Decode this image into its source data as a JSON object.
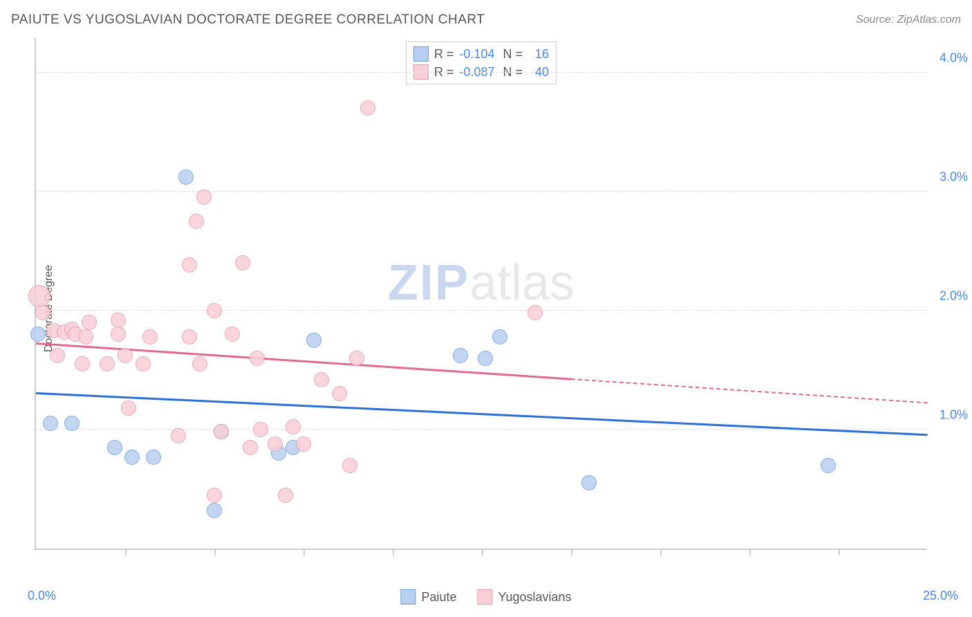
{
  "title": "PAIUTE VS YUGOSLAVIAN DOCTORATE DEGREE CORRELATION CHART",
  "source": "Source: ZipAtlas.com",
  "ylabel": "Doctorate Degree",
  "watermark": {
    "zip": "ZIP",
    "atlas": "atlas"
  },
  "colors": {
    "blue_fill": "#b8d0f0",
    "blue_stroke": "#6d9de0",
    "pink_fill": "#f8d0d8",
    "pink_stroke": "#e89aa8",
    "blue_line": "#2b6fd6",
    "pink_line": "#e06990",
    "axis_text": "#4a86e8",
    "grid": "#dddddd"
  },
  "chart": {
    "type": "scatter",
    "xlim": [
      0,
      25
    ],
    "ylim": [
      0,
      4.3
    ],
    "yticks": [
      1.0,
      2.0,
      3.0,
      4.0
    ],
    "ytick_labels": [
      "1.0%",
      "2.0%",
      "3.0%",
      "4.0%"
    ],
    "xtick_positions": [
      2.5,
      5.0,
      7.5,
      10.0,
      12.5,
      15.0,
      17.5,
      20.0,
      22.5
    ],
    "xaxis_left_label": "0.0%",
    "xaxis_right_label": "25.0%",
    "marker_radius": 11,
    "marker_radius_large": 16,
    "series": [
      {
        "name": "Paiute",
        "color_key": "blue",
        "trend": {
          "x1": 0,
          "y1": 1.3,
          "x2": 25,
          "y2": 0.95,
          "dash_from_x": null
        },
        "points": [
          {
            "x": 0.05,
            "y": 1.8,
            "r": 11
          },
          {
            "x": 0.4,
            "y": 1.05
          },
          {
            "x": 1.0,
            "y": 1.05
          },
          {
            "x": 2.2,
            "y": 0.85
          },
          {
            "x": 2.7,
            "y": 0.77
          },
          {
            "x": 3.3,
            "y": 0.77
          },
          {
            "x": 4.2,
            "y": 3.12
          },
          {
            "x": 5.0,
            "y": 0.32
          },
          {
            "x": 5.2,
            "y": 0.98
          },
          {
            "x": 6.8,
            "y": 0.8
          },
          {
            "x": 7.2,
            "y": 0.85
          },
          {
            "x": 7.8,
            "y": 1.75
          },
          {
            "x": 11.9,
            "y": 1.62
          },
          {
            "x": 12.6,
            "y": 1.6
          },
          {
            "x": 13.0,
            "y": 1.78
          },
          {
            "x": 15.5,
            "y": 0.55
          },
          {
            "x": 22.2,
            "y": 0.7
          }
        ]
      },
      {
        "name": "Yugoslavians",
        "color_key": "pink",
        "trend": {
          "x1": 0,
          "y1": 1.72,
          "x2": 25,
          "y2": 1.22,
          "dash_from_x": 15
        },
        "points": [
          {
            "x": 0.1,
            "y": 2.12,
            "r": 16
          },
          {
            "x": 0.2,
            "y": 1.98
          },
          {
            "x": 0.5,
            "y": 1.83
          },
          {
            "x": 0.6,
            "y": 1.62
          },
          {
            "x": 0.8,
            "y": 1.82
          },
          {
            "x": 1.0,
            "y": 1.84
          },
          {
            "x": 1.1,
            "y": 1.8
          },
          {
            "x": 1.3,
            "y": 1.55
          },
          {
            "x": 1.4,
            "y": 1.78
          },
          {
            "x": 1.5,
            "y": 1.9
          },
          {
            "x": 2.0,
            "y": 1.55
          },
          {
            "x": 2.3,
            "y": 1.92
          },
          {
            "x": 2.3,
            "y": 1.8
          },
          {
            "x": 2.5,
            "y": 1.62
          },
          {
            "x": 2.6,
            "y": 1.18
          },
          {
            "x": 3.0,
            "y": 1.55
          },
          {
            "x": 3.2,
            "y": 1.78
          },
          {
            "x": 4.0,
            "y": 0.95
          },
          {
            "x": 4.3,
            "y": 1.78
          },
          {
            "x": 4.3,
            "y": 2.38
          },
          {
            "x": 4.5,
            "y": 2.75
          },
          {
            "x": 4.6,
            "y": 1.55
          },
          {
            "x": 4.7,
            "y": 2.95
          },
          {
            "x": 5.0,
            "y": 2.0
          },
          {
            "x": 5.0,
            "y": 0.45
          },
          {
            "x": 5.2,
            "y": 0.98
          },
          {
            "x": 5.5,
            "y": 1.8
          },
          {
            "x": 5.8,
            "y": 2.4
          },
          {
            "x": 6.0,
            "y": 0.85
          },
          {
            "x": 6.2,
            "y": 1.6
          },
          {
            "x": 6.3,
            "y": 1.0
          },
          {
            "x": 6.7,
            "y": 0.88
          },
          {
            "x": 7.0,
            "y": 0.45
          },
          {
            "x": 7.2,
            "y": 1.02
          },
          {
            "x": 7.5,
            "y": 0.88
          },
          {
            "x": 8.0,
            "y": 1.42
          },
          {
            "x": 8.5,
            "y": 1.3
          },
          {
            "x": 8.8,
            "y": 0.7
          },
          {
            "x": 9.0,
            "y": 1.6
          },
          {
            "x": 9.3,
            "y": 3.7
          },
          {
            "x": 14.0,
            "y": 1.98
          }
        ]
      }
    ]
  },
  "stats": [
    {
      "swatch_key": "blue",
      "r_label": "R =",
      "r": "-0.104",
      "n_label": "N =",
      "n": "16"
    },
    {
      "swatch_key": "pink",
      "r_label": "R =",
      "r": "-0.087",
      "n_label": "N =",
      "n": "40"
    }
  ],
  "legend": [
    {
      "swatch_key": "blue",
      "label": "Paiute"
    },
    {
      "swatch_key": "pink",
      "label": "Yugoslavians"
    }
  ]
}
